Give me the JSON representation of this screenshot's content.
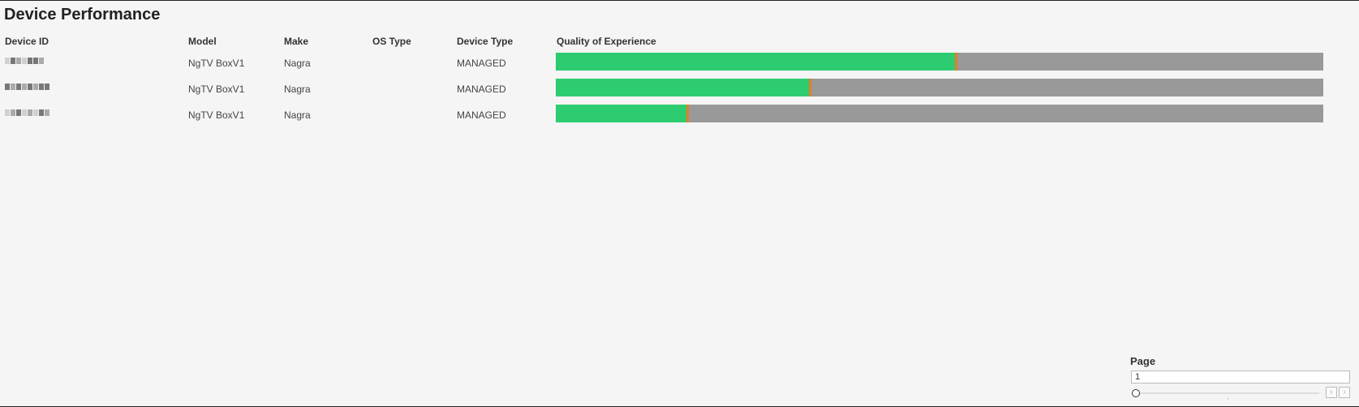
{
  "title": "Device Performance",
  "columns": {
    "device_id": "Device ID",
    "model": "Model",
    "make": "Make",
    "os_type": "OS Type",
    "device_type": "Device Type",
    "qoe": "Quality of Experience"
  },
  "rows": [
    {
      "model": "NgTV BoxV1",
      "make": "Nagra",
      "os_type": "",
      "device_type": "MANAGED",
      "qoe_good_fraction": 0.52
    },
    {
      "model": "NgTV BoxV1",
      "make": "Nagra",
      "os_type": "",
      "device_type": "MANAGED",
      "qoe_good_fraction": 0.33
    },
    {
      "model": "NgTV BoxV1",
      "make": "Nagra",
      "os_type": "",
      "device_type": "MANAGED",
      "qoe_good_fraction": 0.17
    }
  ],
  "colors": {
    "good": "#2ecc71",
    "neutral": "#999999",
    "marker": "#e67e22"
  },
  "pager": {
    "label": "Page",
    "value": "1"
  },
  "icons": {
    "prev": "chevron-left-icon",
    "next": "chevron-right-icon",
    "slider": "slider-knob"
  }
}
